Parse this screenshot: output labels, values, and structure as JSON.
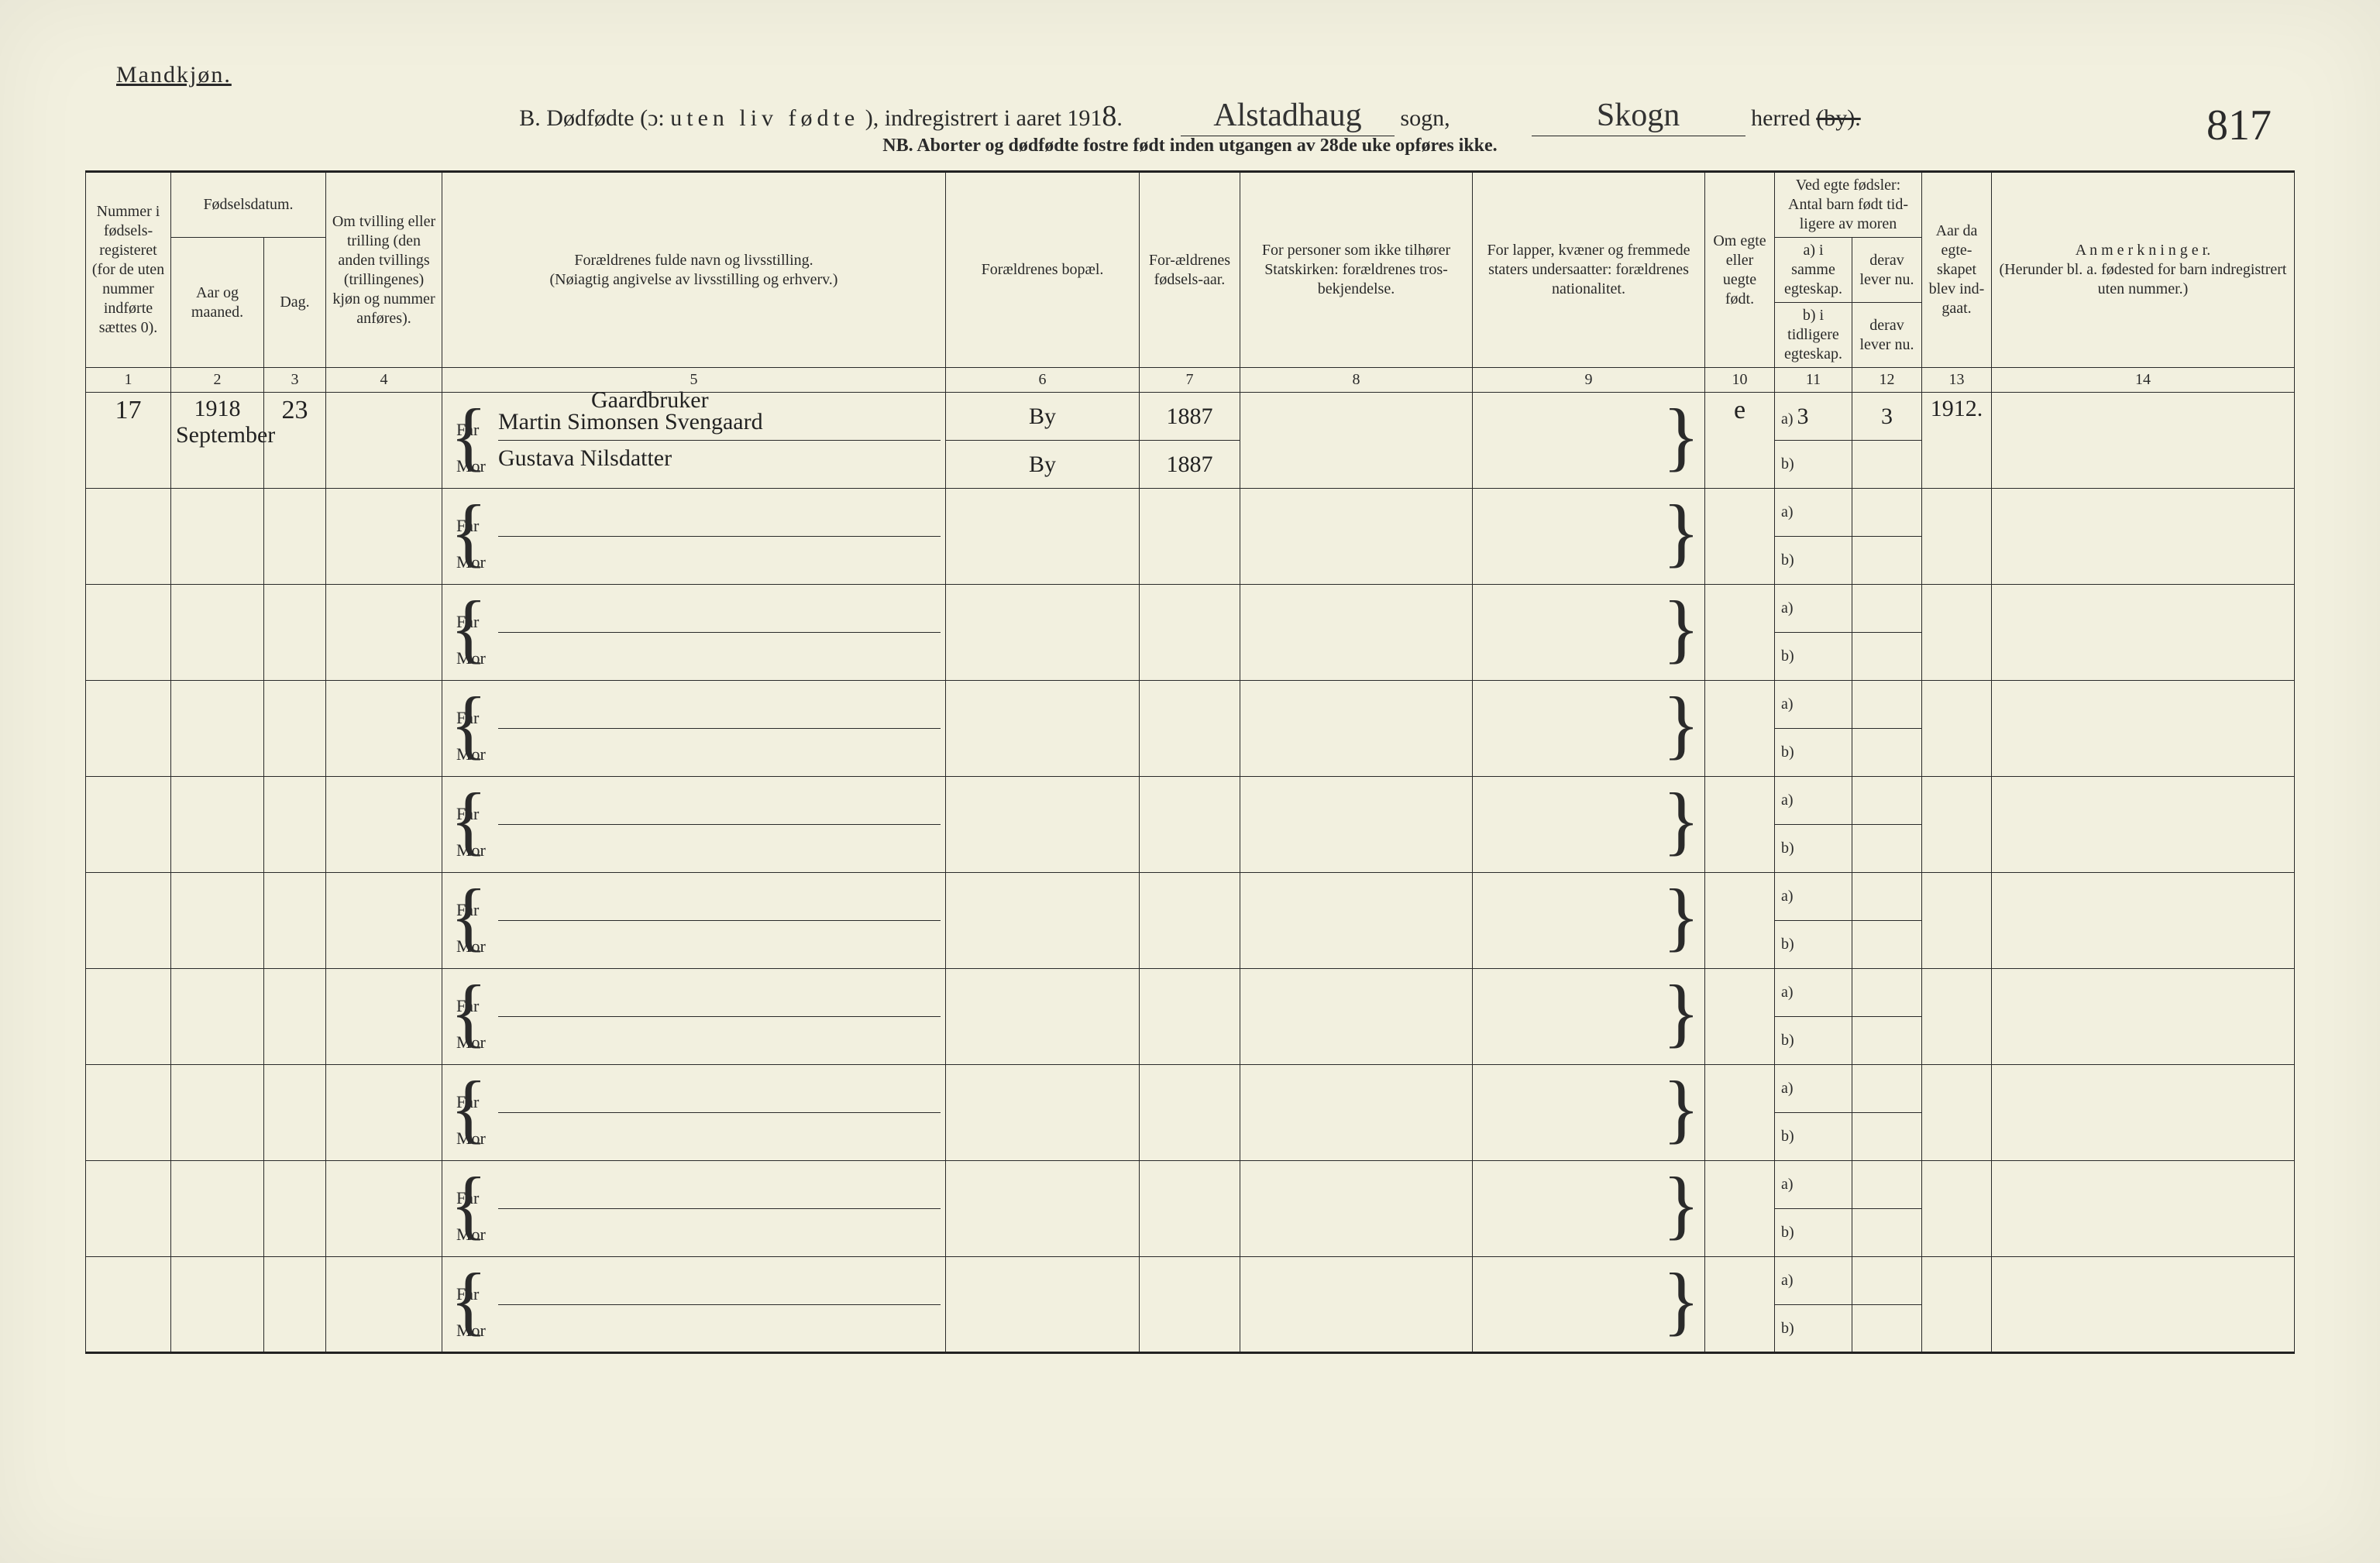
{
  "meta": {
    "gender_label": "Mandkjøn.",
    "title_prefix": "B. Dødfødte (ɔ:",
    "title_spaced": "uten liv fødte",
    "title_mid": "), indregistrert i aaret 191",
    "year_suffix": "8",
    "title_dot": ".",
    "sogn_hand": "Alstadhaug",
    "sogn_label": "sogn,",
    "herred_hand": "Skogn",
    "herred_label": "herred",
    "herred_struck": "(by).",
    "nb_line": "NB.  Aborter og dødfødte fostre født inden utgangen av 28de uke opføres ikke.",
    "page_number": "817"
  },
  "columns": {
    "h1": "Nummer i fødsels-registeret (for de uten nummer indførte sættes 0).",
    "h2_group": "Fødselsdatum.",
    "h2a": "Aar og maaned.",
    "h2b": "Dag.",
    "h4": "Om tvilling eller trilling (den anden tvillings (trillingenes) kjøn og nummer anføres).",
    "h5": "Forældrenes fulde navn og livsstilling.\n(Nøiagtig angivelse av livsstilling og erhverv.)",
    "h6": "Forældrenes bopæl.",
    "h7": "For-ældrenes fødsels-aar.",
    "h8": "For personer som ikke tilhører Statskirken: forældrenes tros-bekjendelse.",
    "h9": "For lapper, kvæner og fremmede staters undersaatter: forældrenes nationalitet.",
    "h10": "Om egte eller uegte født.",
    "h11_top": "Ved egte fødsler:\nAntal barn født tid-ligere av moren",
    "h11a": "a) i samme egteskap.",
    "h11b": "b) i tidligere egteskap.",
    "h12a": "derav lever nu.",
    "h12b": "derav lever nu.",
    "h13": "Aar da egte-skapet blev ind-gaat.",
    "h14": "A n m e r k n i n g e r.\n(Herunder bl. a. fødested for barn indregistrert uten nummer.)",
    "nums": [
      "1",
      "2",
      "3",
      "4",
      "5",
      "6",
      "7",
      "8",
      "9",
      "10",
      "11",
      "12",
      "13",
      "14"
    ]
  },
  "entry": {
    "number": "17",
    "year": "1918",
    "month": "September",
    "day": "23",
    "far_top": "Gaardbruker",
    "far": "Martin Simonsen Svengaard",
    "mor": "Gustava Nilsdatter",
    "bopael_far": "By",
    "bopael_mor": "By",
    "faar_far": "1887",
    "faar_mor": "1887",
    "egte": "e",
    "a_same": "3",
    "a_lever": "3",
    "egte_aar": "1912."
  },
  "labels": {
    "far": "Far",
    "mor": "Mor",
    "a": "a)",
    "b": "b)"
  },
  "style": {
    "bg": "#f2f0df",
    "ink": "#2a2a2a",
    "row_count_blank": 9
  }
}
